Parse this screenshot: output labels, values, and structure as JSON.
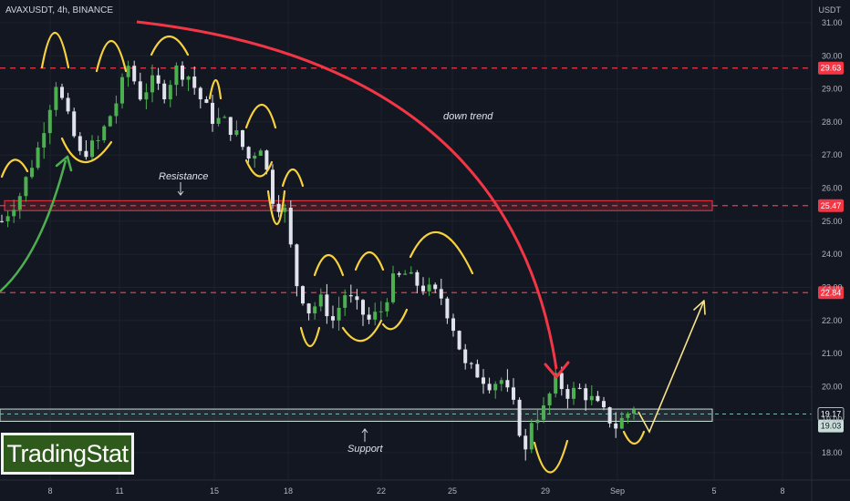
{
  "header": {
    "symbol_title": "AVAXUSDT, 4h, BINANCE",
    "currency": "USDT"
  },
  "brand": {
    "label": "TradingStat"
  },
  "colors": {
    "background": "#131722",
    "up_candle": "#4caf50",
    "down_candle": "#e0e3eb",
    "level_line": "#f23645",
    "trend_arrow": "#f23645",
    "wave_marks": "#f7d13e",
    "rise_arrow": "#4caf50",
    "projection_arrow": "#f7e48a",
    "support_zone": "#c8ddd8",
    "resistance_zone": "#f23645"
  },
  "chart_data": {
    "type": "candlestick",
    "title": "AVAXUSDT, 4h, BINANCE",
    "ylabel": "USDT",
    "ylim": [
      17.2,
      31.5
    ],
    "y_ticks": [
      18.0,
      19.0,
      20.0,
      21.0,
      22.0,
      23.0,
      24.0,
      25.0,
      26.0,
      27.0,
      28.0,
      29.0,
      30.0,
      31.0
    ],
    "x_ticks": [
      "8",
      "11",
      "15",
      "18",
      "22",
      "25",
      "29",
      "Sep",
      "5",
      "8"
    ],
    "grid": true,
    "price_levels": [
      {
        "value": 29.63,
        "label": "29.63"
      },
      {
        "value": 25.47,
        "label": "25.47"
      },
      {
        "value": 22.84,
        "label": "22.84"
      }
    ],
    "current_price": {
      "value": 19.17,
      "label": "19.17"
    },
    "support_price": {
      "value": 19.03,
      "label": "19.03"
    },
    "zones": [
      {
        "name": "Resistance",
        "low": 25.32,
        "high": 25.62
      },
      {
        "name": "Support",
        "low": 18.95,
        "high": 19.32
      }
    ],
    "annotations": [
      "down trend",
      "Resistance",
      "Support"
    ],
    "price_path": [
      [
        0,
        25.0
      ],
      [
        3,
        25.8
      ],
      [
        6,
        27.2
      ],
      [
        9,
        29.2
      ],
      [
        11,
        28.1
      ],
      [
        13,
        27.0
      ],
      [
        16,
        27.4
      ],
      [
        19,
        28.6
      ],
      [
        21,
        29.7
      ],
      [
        23,
        28.8
      ],
      [
        25,
        29.2
      ],
      [
        27,
        28.9
      ],
      [
        29,
        29.6
      ],
      [
        31,
        29.4
      ],
      [
        33,
        28.7
      ],
      [
        35,
        28.1
      ],
      [
        37,
        28.0
      ],
      [
        39,
        27.6
      ],
      [
        41,
        26.9
      ],
      [
        43,
        27.3
      ],
      [
        45,
        25.7
      ],
      [
        47,
        25.3
      ],
      [
        49,
        23.1
      ],
      [
        51,
        22.3
      ],
      [
        53,
        22.6
      ],
      [
        55,
        22.0
      ],
      [
        57,
        22.8
      ],
      [
        59,
        22.4
      ],
      [
        61,
        22.0
      ],
      [
        63,
        22.3
      ],
      [
        65,
        23.2
      ],
      [
        67,
        23.4
      ],
      [
        69,
        23.1
      ],
      [
        71,
        22.9
      ],
      [
        73,
        22.7
      ],
      [
        75,
        21.8
      ],
      [
        77,
        20.6
      ],
      [
        79,
        20.4
      ],
      [
        81,
        20.1
      ],
      [
        83,
        20.2
      ],
      [
        85,
        19.4
      ],
      [
        87,
        18.0
      ],
      [
        88,
        19.0
      ],
      [
        90,
        19.3
      ],
      [
        92,
        20.2
      ],
      [
        94,
        19.8
      ],
      [
        96,
        19.9
      ],
      [
        98,
        19.6
      ],
      [
        100,
        19.2
      ],
      [
        102,
        18.8
      ],
      [
        104,
        19.2
      ],
      [
        105,
        19.4
      ]
    ]
  }
}
